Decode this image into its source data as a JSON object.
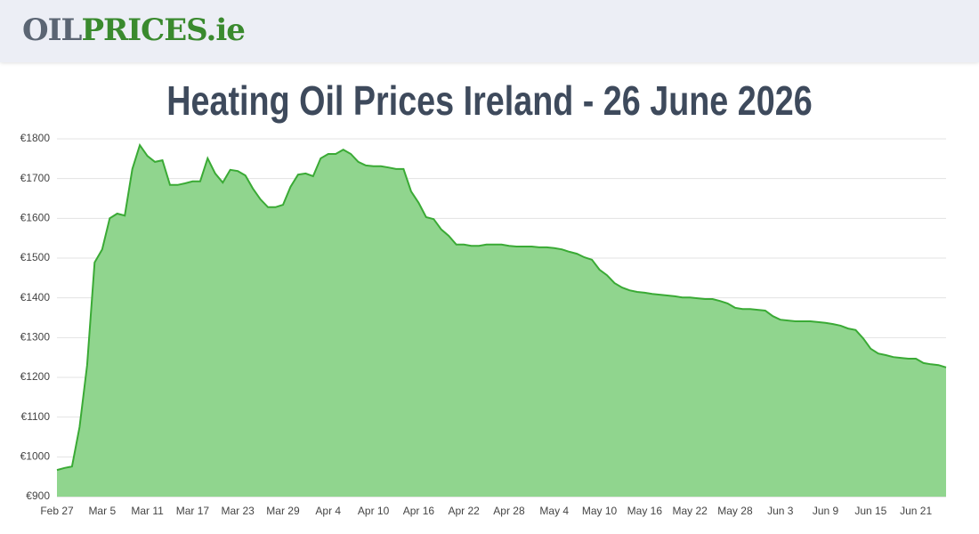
{
  "header": {
    "logo_part1": "OIL",
    "logo_part2": "PRICES.ie"
  },
  "chart_data": {
    "type": "area",
    "title": "Heating Oil Prices Ireland - 26 June 2026",
    "categories": [
      "Feb 27",
      null,
      null,
      null,
      null,
      null,
      "Mar 5",
      null,
      null,
      null,
      null,
      null,
      "Mar 11",
      null,
      null,
      null,
      null,
      null,
      "Mar 17",
      null,
      null,
      null,
      null,
      null,
      "Mar 23",
      null,
      null,
      null,
      null,
      null,
      "Mar 29",
      null,
      null,
      null,
      null,
      null,
      "Apr 4",
      null,
      null,
      null,
      null,
      null,
      "Apr 10",
      null,
      null,
      null,
      null,
      null,
      "Apr 16",
      null,
      null,
      null,
      null,
      null,
      "Apr 22",
      null,
      null,
      null,
      null,
      null,
      "Apr 28",
      null,
      null,
      null,
      null,
      null,
      "May 4",
      null,
      null,
      null,
      null,
      null,
      "May 10",
      null,
      null,
      null,
      null,
      null,
      "May 16",
      null,
      null,
      null,
      null,
      null,
      "May 22",
      null,
      null,
      null,
      null,
      null,
      "May 28",
      null,
      null,
      null,
      null,
      null,
      "Jun 3",
      null,
      null,
      null,
      null,
      null,
      "Jun 9",
      null,
      null,
      null,
      null,
      null,
      "Jun 15",
      null,
      null,
      null,
      null,
      null,
      "Jun 21",
      null,
      null,
      null,
      null
    ],
    "values": [
      967,
      972,
      976,
      1075,
      1231,
      1489,
      1522,
      1600,
      1612,
      1607,
      1724,
      1784,
      1757,
      1742,
      1746,
      1684,
      1684,
      1688,
      1693,
      1693,
      1751,
      1713,
      1690,
      1722,
      1719,
      1708,
      1675,
      1648,
      1628,
      1628,
      1634,
      1679,
      1710,
      1713,
      1706,
      1751,
      1762,
      1762,
      1773,
      1762,
      1742,
      1733,
      1731,
      1731,
      1728,
      1724,
      1724,
      1668,
      1639,
      1603,
      1598,
      1572,
      1556,
      1534,
      1534,
      1531,
      1531,
      1534,
      1534,
      1534,
      1531,
      1529,
      1529,
      1529,
      1527,
      1527,
      1525,
      1522,
      1516,
      1511,
      1502,
      1496,
      1471,
      1457,
      1437,
      1426,
      1419,
      1415,
      1413,
      1410,
      1408,
      1406,
      1404,
      1401,
      1401,
      1399,
      1397,
      1397,
      1392,
      1386,
      1375,
      1372,
      1372,
      1370,
      1368,
      1354,
      1345,
      1343,
      1341,
      1341,
      1341,
      1339,
      1337,
      1334,
      1330,
      1323,
      1319,
      1298,
      1272,
      1260,
      1256,
      1251,
      1249,
      1247,
      1247,
      1236,
      1233,
      1231,
      1225
    ],
    "color": "#3aaa35",
    "fill_color": "#90d58e",
    "ylim": [
      900,
      1800
    ],
    "yticks": [
      {
        "value": 900,
        "label": "€900"
      },
      {
        "value": 1000,
        "label": "€1000"
      },
      {
        "value": 1100,
        "label": "€1100"
      },
      {
        "value": 1200,
        "label": "€1200"
      },
      {
        "value": 1300,
        "label": "€1300"
      },
      {
        "value": 1400,
        "label": "€1400"
      },
      {
        "value": 1500,
        "label": "€1500"
      },
      {
        "value": 1600,
        "label": "€1600"
      },
      {
        "value": 1700,
        "label": "€1700"
      },
      {
        "value": 1800,
        "label": "€1800"
      }
    ],
    "grid": true
  }
}
